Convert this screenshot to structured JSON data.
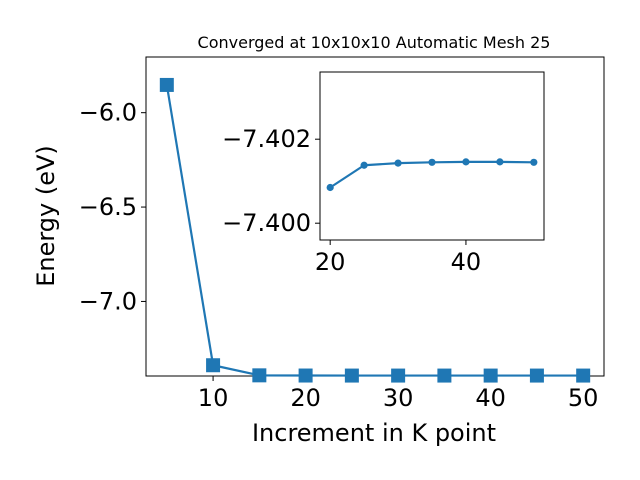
{
  "chart_data": [
    {
      "type": "line",
      "title": "Converged at 10x10x10 Automatic Mesh 25",
      "xlabel": "Increment in K point",
      "ylabel": "Energy (eV)",
      "xlim": [
        2.75,
        52.25
      ],
      "ylim": [
        -7.395,
        -5.705
      ],
      "xticks": [
        10,
        20,
        30,
        40,
        50
      ],
      "xtick_labels": [
        "10",
        "20",
        "30",
        "40",
        "50"
      ],
      "yticks": [
        -6.0,
        -6.5,
        -7.0
      ],
      "ytick_labels": [
        "−6.0",
        "−6.5",
        "−7.0"
      ],
      "grid": false,
      "marker": "square",
      "color": "#1f77b4",
      "series": [
        {
          "x": [
            5,
            10,
            15,
            20,
            25,
            30,
            35,
            40,
            45,
            50
          ],
          "values": [
            -5.853,
            -7.338,
            -7.3915,
            -7.3925,
            -7.3927,
            -7.3927,
            -7.3927,
            -7.3927,
            -7.3927,
            -7.3927
          ]
        }
      ]
    },
    {
      "type": "line",
      "title": "",
      "xlabel": "",
      "ylabel": "",
      "xlim": [
        18.5,
        51.5
      ],
      "ylim": [
        -7.3996,
        -7.4036
      ],
      "xticks": [
        20,
        40
      ],
      "xtick_labels": [
        "20",
        "40"
      ],
      "yticks": [
        -7.402,
        -7.4
      ],
      "ytick_labels": [
        "−7.402",
        "−7.400"
      ],
      "grid": false,
      "marker": "circle",
      "color": "#1f77b4",
      "series": [
        {
          "x": [
            20,
            25,
            30,
            35,
            40,
            45,
            50
          ],
          "values": [
            -7.40085,
            -7.40138,
            -7.40143,
            -7.40145,
            -7.40146,
            -7.40146,
            -7.40145
          ]
        }
      ]
    }
  ]
}
